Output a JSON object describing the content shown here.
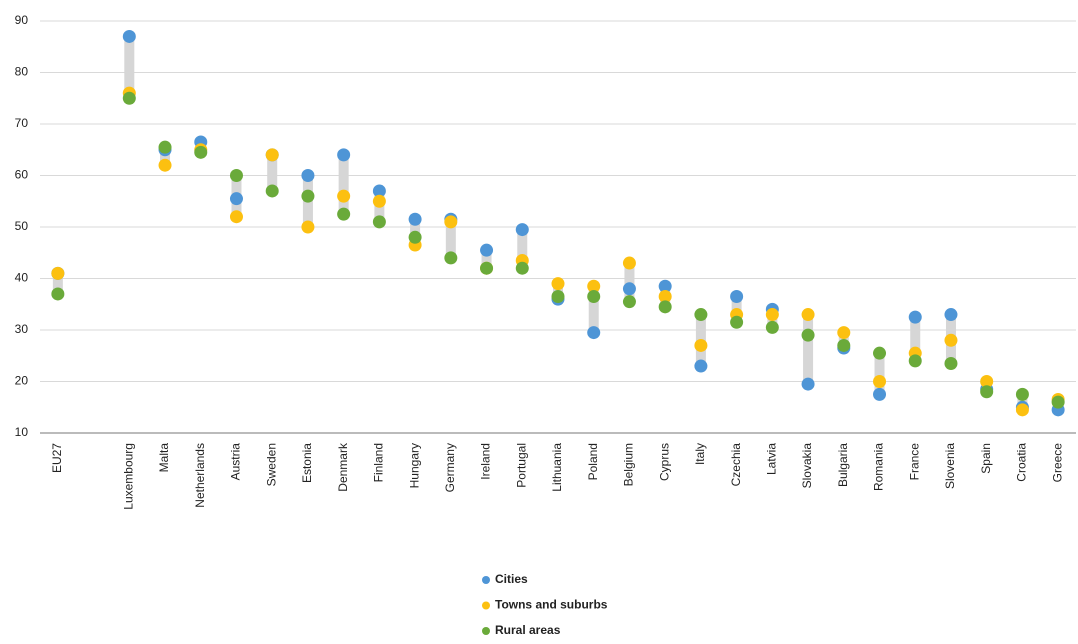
{
  "chart_data": {
    "type": "dot",
    "categories": [
      "EU27",
      null,
      "Luxembourg",
      "Malta",
      "Netherlands",
      "Austria",
      "Sweden",
      "Estonia",
      "Denmark",
      "Finland",
      "Hungary",
      "Germany",
      "Ireland",
      "Portugal",
      "Lithuania",
      "Poland",
      "Belgium",
      "Cyprus",
      "Italy",
      "Czechia",
      "Latvia",
      "Slovakia",
      "Bulgaria",
      "Romania",
      "France",
      "Slovenia",
      "Spain",
      "Croatia",
      "Greece"
    ],
    "series": [
      {
        "name": "Cities",
        "color": "#4e95d6",
        "values": [
          41,
          null,
          87,
          65,
          66.5,
          55.5,
          64,
          60,
          64,
          57,
          51.5,
          51.5,
          45.5,
          49.5,
          36,
          29.5,
          38,
          38.5,
          23,
          36.5,
          34,
          19.5,
          26.5,
          17.5,
          32.5,
          33,
          18.5,
          15,
          14.5
        ]
      },
      {
        "name": "Towns and suburbs",
        "color": "#fcc010",
        "values": [
          41,
          null,
          76,
          62,
          65,
          52,
          64,
          50,
          56,
          55,
          46.5,
          51,
          42,
          43.5,
          39,
          38.5,
          43,
          36.5,
          27,
          33,
          33,
          33,
          29.5,
          20,
          25.5,
          28,
          20,
          14.5,
          16.5
        ]
      },
      {
        "name": "Rural areas",
        "color": "#6aaa3a",
        "values": [
          37,
          null,
          75,
          65.5,
          64.5,
          60,
          57,
          56,
          52.5,
          51,
          48,
          44,
          42,
          42,
          36.5,
          36.5,
          35.5,
          34.5,
          33,
          31.5,
          30.5,
          29,
          27,
          25.5,
          24,
          23.5,
          18,
          17.5,
          16
        ]
      }
    ],
    "ylim": [
      10,
      90
    ],
    "yticks": [
      10,
      20,
      30,
      40,
      50,
      60,
      70,
      80,
      90
    ],
    "grid": true
  }
}
